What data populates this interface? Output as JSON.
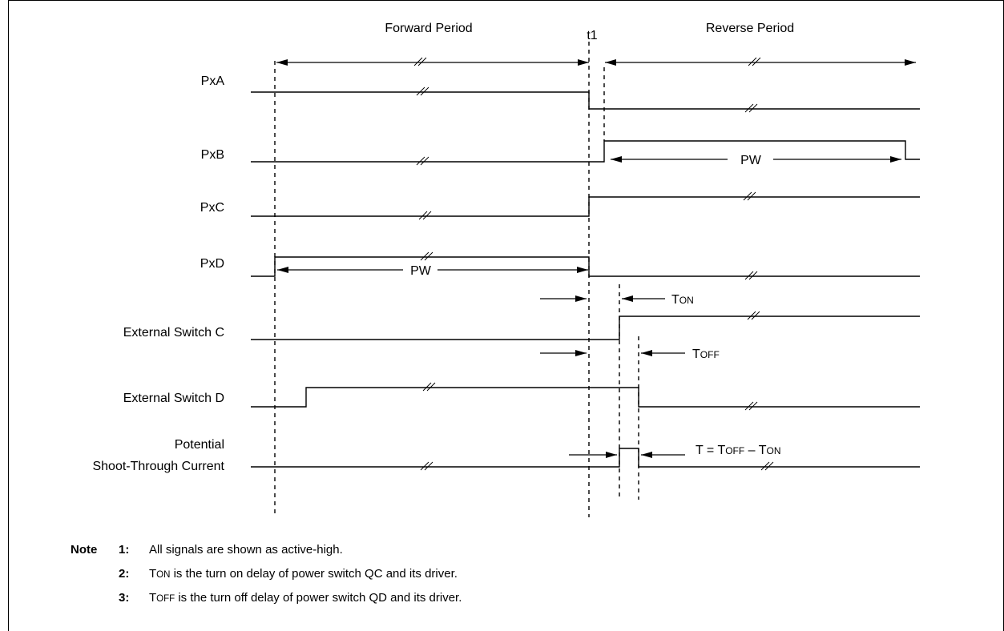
{
  "header": {
    "forward_label": "Forward Period",
    "reverse_label": "Reverse Period",
    "t1_label": "t1"
  },
  "signals": {
    "pxa": "PxA",
    "pxb": "PxB",
    "pxc": "PxC",
    "pxd": "PxD",
    "switch_c": "External Switch C",
    "switch_d": "External Switch D",
    "shoot_line1": "Potential",
    "shoot_line2": "Shoot-Through Current"
  },
  "annotations": {
    "pw": "PW",
    "t_prefix": "T",
    "ton_sub": "ON",
    "toff_sub": "OFF",
    "t_eq": "T = ",
    "minus": " – "
  },
  "notes": {
    "lead": "Note",
    "items": [
      {
        "num": "1:",
        "text": "All signals are shown as active-high."
      },
      {
        "num": "2:",
        "text_sub": "ON",
        "text": " is the turn on delay of power switch QC and its driver."
      },
      {
        "num": "3:",
        "text_sub": "OFF",
        "text": " is the turn off delay of power switch QD and its driver."
      }
    ]
  }
}
